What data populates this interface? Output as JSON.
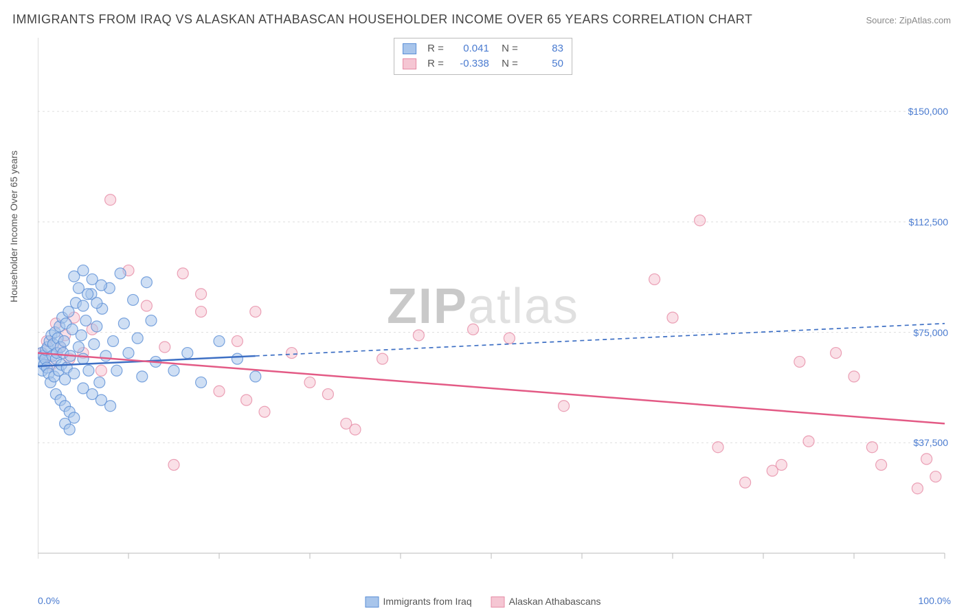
{
  "title": "IMMIGRANTS FROM IRAQ VS ALASKAN ATHABASCAN HOUSEHOLDER INCOME OVER 65 YEARS CORRELATION CHART",
  "source": "Source: ZipAtlas.com",
  "ylabel": "Householder Income Over 65 years",
  "watermark_prefix": "ZIP",
  "watermark_suffix": "atlas",
  "chart": {
    "type": "scatter",
    "xlim": [
      0,
      100
    ],
    "ylim": [
      0,
      175000
    ],
    "xtick_positions": [
      0,
      10,
      20,
      30,
      40,
      50,
      60,
      70,
      80,
      90,
      100
    ],
    "ytick_values": [
      37500,
      75000,
      112500,
      150000
    ],
    "ytick_labels": [
      "$37,500",
      "$75,000",
      "$112,500",
      "$150,000"
    ],
    "ygrid_values": [
      0,
      37500,
      75000,
      112500,
      150000
    ],
    "xaxis_label_left": "0.0%",
    "xaxis_label_right": "100.0%",
    "background_color": "#ffffff",
    "grid_color": "#dddddd",
    "axis_color": "#bbbbbb",
    "marker_radius": 8,
    "marker_opacity": 0.55,
    "marker_stroke_width": 1.2,
    "trend_line_width": 2.5,
    "series": [
      {
        "name": "Immigrants from Iraq",
        "fill_color": "#a8c5eb",
        "stroke_color": "#5b8fd6",
        "line_color": "#3d6fc4",
        "R": "0.041",
        "N": "83",
        "trend": {
          "x1": 0,
          "y1": 63500,
          "x2": 100,
          "y2": 78000,
          "solid_until_x": 24
        },
        "points": [
          [
            0.3,
            65000
          ],
          [
            0.4,
            68000
          ],
          [
            0.5,
            62000
          ],
          [
            0.6,
            67000
          ],
          [
            0.7,
            64000
          ],
          [
            0.8,
            66000
          ],
          [
            0.9,
            69000
          ],
          [
            1.0,
            63000
          ],
          [
            1.1,
            70000
          ],
          [
            1.2,
            61000
          ],
          [
            1.3,
            72000
          ],
          [
            1.4,
            58000
          ],
          [
            1.5,
            74000
          ],
          [
            1.6,
            67000
          ],
          [
            1.7,
            71000
          ],
          [
            1.8,
            60000
          ],
          [
            1.9,
            75000
          ],
          [
            2.0,
            66000
          ],
          [
            2.1,
            68000
          ],
          [
            2.2,
            73000
          ],
          [
            2.3,
            62000
          ],
          [
            2.4,
            77000
          ],
          [
            2.5,
            70000
          ],
          [
            2.6,
            64000
          ],
          [
            2.7,
            80000
          ],
          [
            2.8,
            68000
          ],
          [
            2.9,
            72000
          ],
          [
            3.0,
            59000
          ],
          [
            3.1,
            78000
          ],
          [
            3.2,
            63000
          ],
          [
            3.4,
            82000
          ],
          [
            3.6,
            67000
          ],
          [
            3.8,
            76000
          ],
          [
            4.0,
            61000
          ],
          [
            4.2,
            85000
          ],
          [
            4.5,
            70000
          ],
          [
            4.8,
            74000
          ],
          [
            5.0,
            66000
          ],
          [
            5.3,
            79000
          ],
          [
            5.6,
            62000
          ],
          [
            5.9,
            88000
          ],
          [
            6.2,
            71000
          ],
          [
            6.5,
            77000
          ],
          [
            6.8,
            58000
          ],
          [
            7.1,
            83000
          ],
          [
            7.5,
            67000
          ],
          [
            7.9,
            90000
          ],
          [
            8.3,
            72000
          ],
          [
            8.7,
            62000
          ],
          [
            9.1,
            95000
          ],
          [
            9.5,
            78000
          ],
          [
            10.0,
            68000
          ],
          [
            10.5,
            86000
          ],
          [
            11.0,
            73000
          ],
          [
            11.5,
            60000
          ],
          [
            12.0,
            92000
          ],
          [
            12.5,
            79000
          ],
          [
            13.0,
            65000
          ],
          [
            2.0,
            54000
          ],
          [
            2.5,
            52000
          ],
          [
            3.0,
            50000
          ],
          [
            3.5,
            48000
          ],
          [
            4.0,
            46000
          ],
          [
            5.0,
            56000
          ],
          [
            6.0,
            54000
          ],
          [
            7.0,
            52000
          ],
          [
            8.0,
            50000
          ],
          [
            4.0,
            94000
          ],
          [
            4.5,
            90000
          ],
          [
            5.0,
            96000
          ],
          [
            5.5,
            88000
          ],
          [
            6.0,
            93000
          ],
          [
            6.5,
            85000
          ],
          [
            7.0,
            91000
          ],
          [
            3.0,
            44000
          ],
          [
            3.5,
            42000
          ],
          [
            5.0,
            84000
          ],
          [
            15.0,
            62000
          ],
          [
            16.5,
            68000
          ],
          [
            18.0,
            58000
          ],
          [
            20.0,
            72000
          ],
          [
            22.0,
            66000
          ],
          [
            24.0,
            60000
          ]
        ]
      },
      {
        "name": "Alaskan Athabascans",
        "fill_color": "#f5c6d3",
        "stroke_color": "#e68ba5",
        "line_color": "#e35a85",
        "R": "-0.338",
        "N": "50",
        "trend": {
          "x1": 0,
          "y1": 68000,
          "x2": 100,
          "y2": 44000,
          "solid_until_x": 100
        },
        "points": [
          [
            0.5,
            68000
          ],
          [
            1.0,
            72000
          ],
          [
            1.5,
            64000
          ],
          [
            2.0,
            78000
          ],
          [
            2.5,
            70000
          ],
          [
            3.0,
            74000
          ],
          [
            3.5,
            66000
          ],
          [
            4.0,
            80000
          ],
          [
            5.0,
            68000
          ],
          [
            6.0,
            76000
          ],
          [
            7.0,
            62000
          ],
          [
            8.0,
            120000
          ],
          [
            10.0,
            96000
          ],
          [
            12.0,
            84000
          ],
          [
            14.0,
            70000
          ],
          [
            15.0,
            30000
          ],
          [
            16.0,
            95000
          ],
          [
            18.0,
            82000
          ],
          [
            20.0,
            55000
          ],
          [
            22.0,
            72000
          ],
          [
            23.0,
            52000
          ],
          [
            25.0,
            48000
          ],
          [
            28.0,
            68000
          ],
          [
            30.0,
            58000
          ],
          [
            32.0,
            54000
          ],
          [
            34.0,
            44000
          ],
          [
            35.0,
            42000
          ],
          [
            38.0,
            66000
          ],
          [
            42.0,
            74000
          ],
          [
            48.0,
            76000
          ],
          [
            52.0,
            73000
          ],
          [
            58.0,
            50000
          ],
          [
            68.0,
            93000
          ],
          [
            70.0,
            80000
          ],
          [
            73.0,
            113000
          ],
          [
            75.0,
            36000
          ],
          [
            78.0,
            24000
          ],
          [
            81.0,
            28000
          ],
          [
            82.0,
            30000
          ],
          [
            84.0,
            65000
          ],
          [
            85.0,
            38000
          ],
          [
            88.0,
            68000
          ],
          [
            90.0,
            60000
          ],
          [
            92.0,
            36000
          ],
          [
            93.0,
            30000
          ],
          [
            97.0,
            22000
          ],
          [
            98.0,
            32000
          ],
          [
            99.0,
            26000
          ],
          [
            18.0,
            88000
          ],
          [
            24.0,
            82000
          ]
        ]
      }
    ],
    "bottom_legend": [
      {
        "label": "Immigrants from Iraq",
        "fill": "#a8c5eb",
        "stroke": "#5b8fd6"
      },
      {
        "label": "Alaskan Athabascans",
        "fill": "#f5c6d3",
        "stroke": "#e68ba5"
      }
    ]
  }
}
